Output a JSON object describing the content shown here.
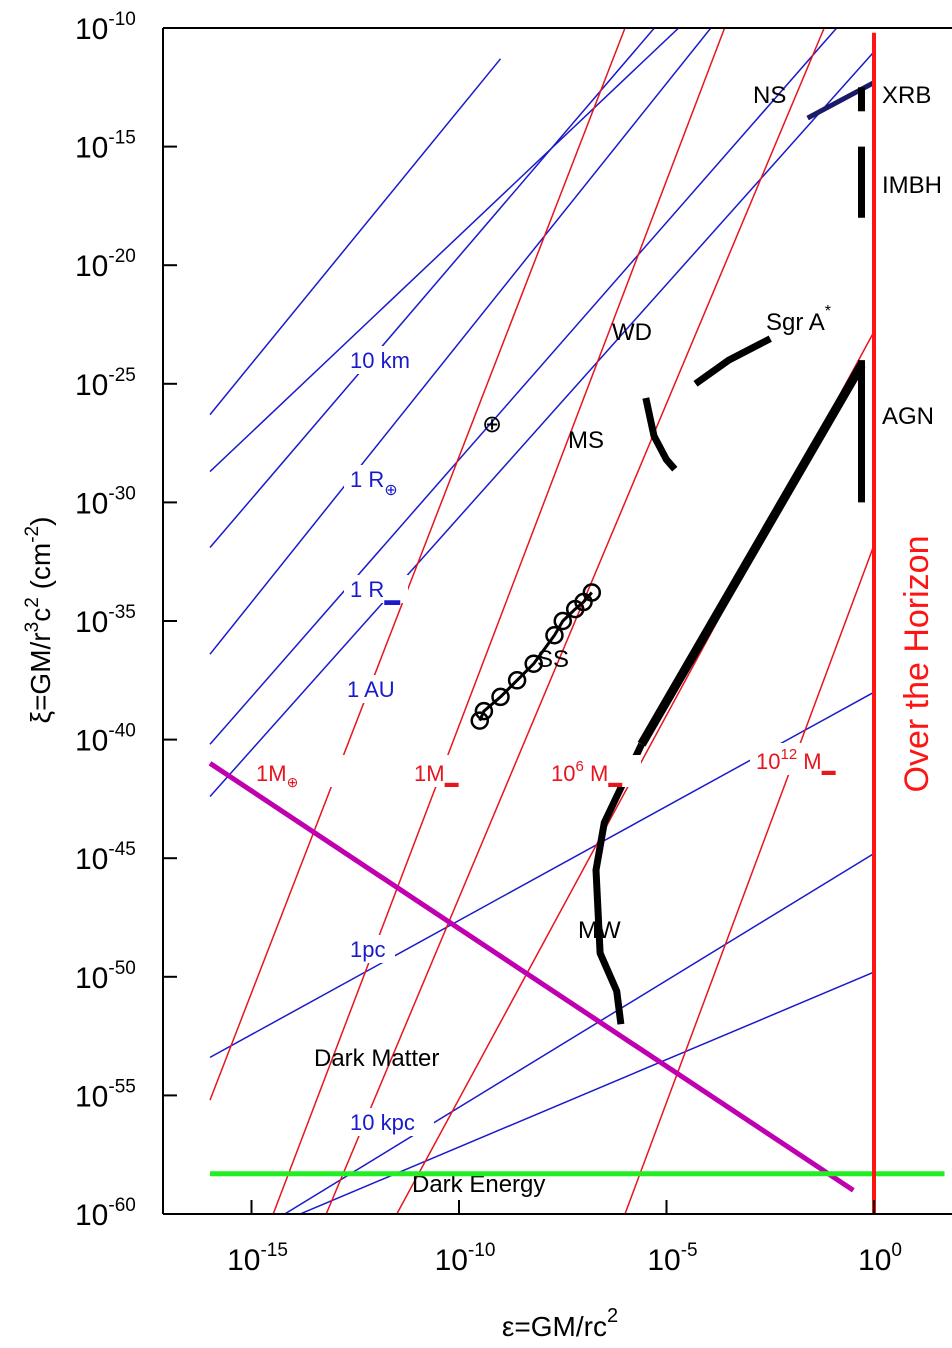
{
  "chart_data": {
    "type": "line",
    "xlabel": "ε=GM/rc",
    "xlabel_sup": "2",
    "ylabel_parts": [
      "ξ=GM/r",
      "3",
      "c",
      "2",
      " (cm",
      "-2",
      ")"
    ],
    "x_scale": "log",
    "y_scale": "log",
    "xlim": [
      1e-16,
      1.0
    ],
    "ylim": [
      1e-60,
      1e-10
    ],
    "x_ticks": [
      {
        "value": 1e-15,
        "base": "10",
        "exp": "-15"
      },
      {
        "value": 1e-10,
        "base": "10",
        "exp": "-10"
      },
      {
        "value": 1e-05,
        "base": "10",
        "exp": "-5"
      },
      {
        "value": 1.0,
        "base": "10",
        "exp": "0"
      }
    ],
    "y_ticks": [
      {
        "value": 1e-10,
        "base": "10",
        "exp": "-10"
      },
      {
        "value": 1e-15,
        "base": "10",
        "exp": "-15"
      },
      {
        "value": 1e-20,
        "base": "10",
        "exp": "-20"
      },
      {
        "value": 1e-25,
        "base": "10",
        "exp": "-25"
      },
      {
        "value": 1e-30,
        "base": "10",
        "exp": "-30"
      },
      {
        "value": 1e-35,
        "base": "10",
        "exp": "-35"
      },
      {
        "value": 1e-40,
        "base": "10",
        "exp": "-40"
      },
      {
        "value": 1e-45,
        "base": "10",
        "exp": "-45"
      },
      {
        "value": 1e-50,
        "base": "10",
        "exp": "-50"
      },
      {
        "value": 1e-55,
        "base": "10",
        "exp": "-55"
      },
      {
        "value": 1e-60,
        "base": "10",
        "exp": "-60"
      }
    ],
    "colors": {
      "radius_lines": "#1a1acc",
      "mass_lines": "#e8141e",
      "objects": "#000000",
      "dark_matter": "#c000b0",
      "dark_energy": "#22ee22",
      "horizon": "#ff1414"
    },
    "radius_lines": [
      {
        "label": "10 km",
        "points": [
          [
            -16,
            -26.3
          ],
          [
            -9,
            -11.3
          ]
        ]
      },
      {
        "label": "1 R",
        "label_sym": "⊕",
        "points": [
          [
            -16,
            -31.9
          ],
          [
            -5,
            -9.4
          ]
        ]
      },
      {
        "label": "1 R",
        "label_sym": "▬",
        "points": [
          [
            -16,
            -36.4
          ],
          [
            0,
            -1.4
          ]
        ]
      },
      {
        "label": "1 AU",
        "points": [
          [
            -16,
            -40.2
          ],
          [
            0,
            -8.2
          ]
        ]
      },
      {
        "label": "",
        "points": [
          [
            -16,
            -42.4
          ],
          [
            0,
            -11.0
          ]
        ]
      },
      {
        "label": "",
        "points": [
          [
            -16,
            -28.7
          ],
          [
            0,
            -2.2
          ]
        ]
      },
      {
        "label": "1pc",
        "points": [
          [
            -16,
            -53.4
          ],
          [
            0,
            -38.0
          ]
        ]
      },
      {
        "label": "",
        "points": [
          [
            -14.2,
            -60
          ],
          [
            0,
            -44.8
          ]
        ]
      },
      {
        "label": "10 kpc",
        "points": [
          [
            -16,
            -61.6
          ],
          [
            0,
            -49.8
          ]
        ]
      }
    ],
    "mass_lines": [
      {
        "label": "1M",
        "label_sym": "⊕",
        "points": [
          [
            -16,
            -55.2
          ],
          [
            -6.0,
            -10.0
          ]
        ]
      },
      {
        "label": "1M",
        "label_sym": "▬",
        "points": [
          [
            -16,
            -67.0
          ],
          [
            -3.6,
            -10.0
          ]
        ]
      },
      {
        "label": "10",
        "label_exp": "6",
        "label_tail": " M",
        "label_sym": "▬",
        "points": [
          [
            -13.2,
            -60.0
          ],
          [
            -1.2,
            -10.0
          ]
        ]
      },
      {
        "label": "",
        "points": [
          [
            -11.5,
            -60.0
          ],
          [
            0,
            -22.8
          ]
        ]
      },
      {
        "label": "10",
        "label_exp": "12",
        "label_tail": " M",
        "label_sym": "▬",
        "points": [
          [
            -6.0,
            -60.0
          ],
          [
            0,
            -31.8
          ]
        ]
      }
    ],
    "series": [
      {
        "name": "NS",
        "points": [
          [
            -1.6,
            -13.8
          ],
          [
            0,
            -12.3
          ]
        ]
      },
      {
        "name": "XRB",
        "points": [
          [
            -0.3,
            -12.5
          ],
          [
            -0.3,
            -14.0
          ]
        ]
      },
      {
        "name": "IMBH",
        "points": [
          [
            -0.3,
            -15.0
          ],
          [
            -0.3,
            -18.0
          ]
        ]
      },
      {
        "name": "WD",
        "points": [
          [
            -4.3,
            -25.0
          ],
          [
            -3.5,
            -24.0
          ],
          [
            -2.5,
            -23.1
          ]
        ]
      },
      {
        "name": "MS",
        "points": [
          [
            -5.5,
            -25.6
          ],
          [
            -5.3,
            -27.2
          ],
          [
            -5.0,
            -28.2
          ],
          [
            -4.8,
            -28.6
          ]
        ]
      },
      {
        "name": "AGN",
        "points": [
          [
            -0.3,
            -24.0
          ],
          [
            -0.3,
            -30.0
          ]
        ]
      },
      {
        "name": "Sgr A*",
        "points": [
          [
            -0.3,
            -24.2
          ],
          [
            -5.6,
            -40.2
          ]
        ]
      },
      {
        "name": "MW",
        "points": [
          [
            -5.6,
            -40.2
          ],
          [
            -6.5,
            -43.5
          ],
          [
            -6.7,
            -45.5
          ],
          [
            -6.6,
            -49.0
          ],
          [
            -6.2,
            -50.6
          ],
          [
            -6.1,
            -52.0
          ]
        ]
      },
      {
        "name": "SS",
        "markers": true,
        "points": [
          [
            -9.5,
            -39.2
          ],
          [
            -9.4,
            -38.8
          ],
          [
            -9.0,
            -38.2
          ],
          [
            -8.6,
            -37.5
          ],
          [
            -8.2,
            -36.8
          ],
          [
            -7.7,
            -35.6
          ],
          [
            -7.5,
            -35.0
          ],
          [
            -7.2,
            -34.5
          ],
          [
            -7.0,
            -34.2
          ],
          [
            -6.8,
            -33.8
          ]
        ]
      },
      {
        "name": "Dark Matter",
        "points": [
          [
            -16,
            -41.0
          ],
          [
            -0.5,
            -59.0
          ]
        ]
      },
      {
        "name": "Dark Energy",
        "points": [
          [
            -16,
            -58.3
          ],
          [
            1.7,
            -58.3
          ]
        ]
      },
      {
        "name": "Over the Horizon",
        "points": [
          [
            0,
            -60
          ],
          [
            0,
            -10.2
          ]
        ]
      }
    ],
    "labels": {
      "NS": "NS",
      "XRB": "XRB",
      "IMBH": "IMBH",
      "WD": "WD",
      "MS": "MS",
      "SS": "SS",
      "MW": "MW",
      "AGN": "AGN",
      "SgrA": "Sgr A",
      "SgrA_sup": "*",
      "earth_symbol": "⊕",
      "dark_matter": "Dark Matter",
      "dark_energy": "Dark Energy",
      "horizon": "Over the Horizon"
    }
  }
}
